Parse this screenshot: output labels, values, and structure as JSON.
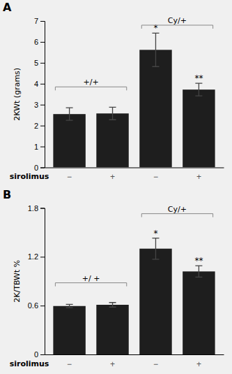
{
  "chart_data": [
    {
      "type": "bar",
      "title": "A",
      "ylabel": "2KWt (grams)",
      "xlabel": "sirolimus",
      "categories": [
        "−",
        "+",
        "−",
        "+"
      ],
      "values": [
        2.55,
        2.58,
        5.62,
        3.72
      ],
      "errors": [
        0.3,
        0.3,
        0.8,
        0.3
      ],
      "sig_labels": [
        null,
        null,
        "*",
        "**"
      ],
      "annotations": [
        {
          "text": "+/+",
          "y": 3.85
        },
        {
          "text": "Cy/+",
          "y": 6.8
        }
      ],
      "color": "#1e1e1e",
      "ylim": [
        0,
        7
      ],
      "yticks": [
        0,
        1,
        2,
        3,
        4,
        5,
        6,
        7
      ]
    },
    {
      "type": "bar",
      "title": "B",
      "ylabel": "2K/TBWt %",
      "xlabel": "sirolimus",
      "categories": [
        "−",
        "+",
        "−",
        "+"
      ],
      "values": [
        0.595,
        0.61,
        1.3,
        1.02
      ],
      "errors": [
        0.02,
        0.028,
        0.13,
        0.07
      ],
      "sig_labels": [
        null,
        null,
        "*",
        "**"
      ],
      "annotations": [
        {
          "text": "+/ +",
          "y": 0.88
        },
        {
          "text": "Cy/+",
          "y": 1.73
        }
      ],
      "color": "#1e1e1e",
      "ylim": [
        0,
        1.8
      ],
      "yticks": [
        0,
        0.6,
        1.2,
        1.8
      ]
    }
  ]
}
